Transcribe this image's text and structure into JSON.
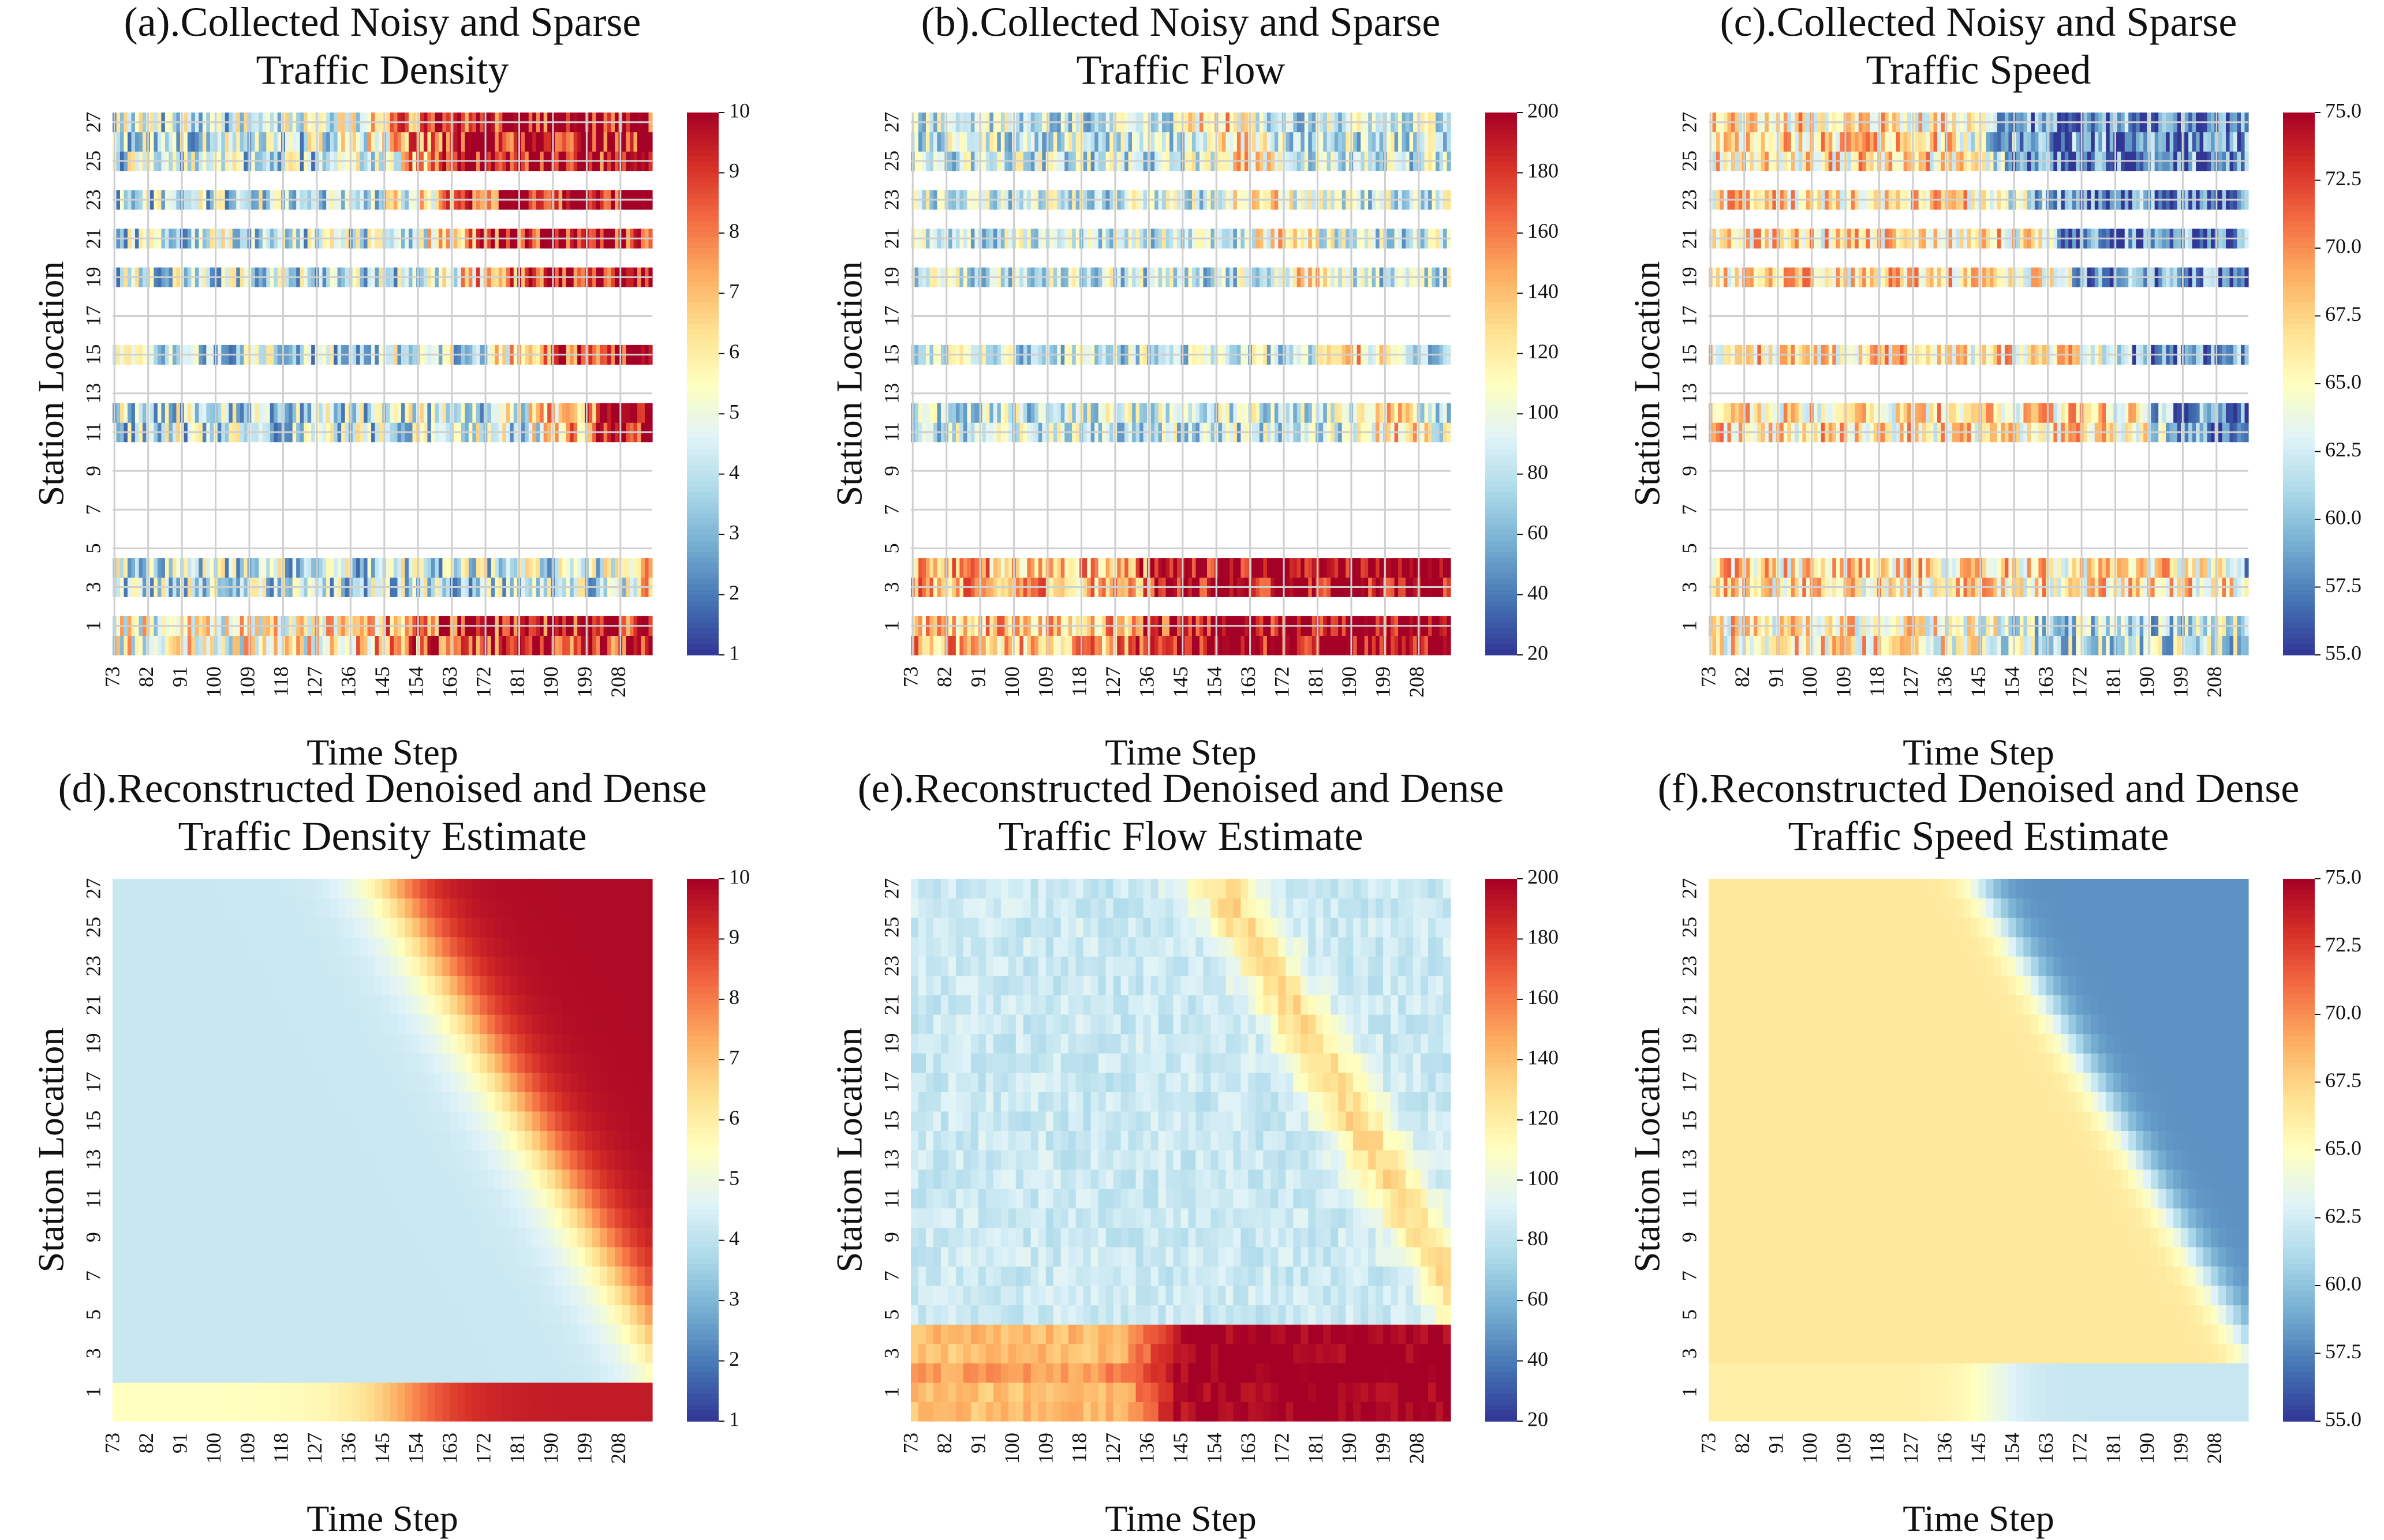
{
  "chart_data": [
    {
      "type": "heatmap",
      "title": [
        "(a).Collected Noisy and Sparse",
        "Traffic Density"
      ],
      "xlabel": "Time Step",
      "ylabel": "Station Location",
      "x_ticks": [
        "73",
        "82",
        "91",
        "100",
        "109",
        "118",
        "127",
        "136",
        "145",
        "154",
        "163",
        "172",
        "181",
        "190",
        "199",
        "208"
      ],
      "y_ticks": [
        "1",
        "3",
        "5",
        "7",
        "9",
        "11",
        "13",
        "15",
        "17",
        "19",
        "21",
        "23",
        "25",
        "27"
      ],
      "colorbar_ticks": [
        "1",
        "2",
        "3",
        "4",
        "5",
        "6",
        "7",
        "8",
        "9",
        "10"
      ],
      "vmin": 1,
      "vmax": 10,
      "x_range": [
        73,
        216
      ],
      "y_range": [
        0,
        27
      ],
      "observed_rows": [
        0,
        1,
        3,
        4,
        11,
        12,
        15,
        19,
        21,
        23,
        25,
        26,
        27
      ],
      "colormap": "RdYlBu_r",
      "field": "density",
      "sparse": true,
      "grid": true
    },
    {
      "type": "heatmap",
      "title": [
        "(b).Collected Noisy and Sparse",
        "Traffic Flow"
      ],
      "xlabel": "Time Step",
      "ylabel": "Station Location",
      "x_ticks": [
        "73",
        "82",
        "91",
        "100",
        "109",
        "118",
        "127",
        "136",
        "145",
        "154",
        "163",
        "172",
        "181",
        "190",
        "199",
        "208"
      ],
      "y_ticks": [
        "1",
        "3",
        "5",
        "7",
        "9",
        "11",
        "13",
        "15",
        "17",
        "19",
        "21",
        "23",
        "25",
        "27"
      ],
      "colorbar_ticks": [
        "20",
        "40",
        "60",
        "80",
        "100",
        "120",
        "140",
        "160",
        "180",
        "200"
      ],
      "vmin": 20,
      "vmax": 200,
      "x_range": [
        73,
        216
      ],
      "y_range": [
        0,
        27
      ],
      "observed_rows": [
        0,
        1,
        3,
        4,
        11,
        12,
        15,
        19,
        21,
        23,
        25,
        26,
        27
      ],
      "colormap": "RdYlBu_r",
      "field": "flow",
      "sparse": true,
      "grid": true
    },
    {
      "type": "heatmap",
      "title": [
        "(c).Collected Noisy and Sparse",
        "Traffic Speed"
      ],
      "xlabel": "Time Step",
      "ylabel": "Station Location",
      "x_ticks": [
        "73",
        "82",
        "91",
        "100",
        "109",
        "118",
        "127",
        "136",
        "145",
        "154",
        "163",
        "172",
        "181",
        "190",
        "199",
        "208"
      ],
      "y_ticks": [
        "1",
        "3",
        "5",
        "7",
        "9",
        "11",
        "13",
        "15",
        "17",
        "19",
        "21",
        "23",
        "25",
        "27"
      ],
      "colorbar_ticks": [
        "55.0",
        "57.5",
        "60.0",
        "62.5",
        "65.0",
        "67.5",
        "70.0",
        "72.5",
        "75.0"
      ],
      "vmin": 55,
      "vmax": 75,
      "x_range": [
        73,
        216
      ],
      "y_range": [
        0,
        27
      ],
      "observed_rows": [
        0,
        1,
        3,
        4,
        11,
        12,
        15,
        19,
        21,
        23,
        25,
        26,
        27
      ],
      "colormap": "RdYlBu_r",
      "field": "speed",
      "sparse": true,
      "grid": true
    },
    {
      "type": "heatmap",
      "title": [
        "(d).Reconstructed Denoised and Dense",
        "Traffic Density Estimate"
      ],
      "xlabel": "Time Step",
      "ylabel": "Station Location",
      "x_ticks": [
        "73",
        "82",
        "91",
        "100",
        "109",
        "118",
        "127",
        "136",
        "145",
        "154",
        "163",
        "172",
        "181",
        "190",
        "199",
        "208"
      ],
      "y_ticks": [
        "1",
        "3",
        "5",
        "7",
        "9",
        "11",
        "13",
        "15",
        "17",
        "19",
        "21",
        "23",
        "25",
        "27"
      ],
      "colorbar_ticks": [
        "1",
        "2",
        "3",
        "4",
        "5",
        "6",
        "7",
        "8",
        "9",
        "10"
      ],
      "vmin": 1,
      "vmax": 10,
      "x_range": [
        73,
        216
      ],
      "y_range": [
        0,
        27
      ],
      "colormap": "RdYlBu_r",
      "field": "density",
      "sparse": false,
      "grid": false
    },
    {
      "type": "heatmap",
      "title": [
        "(e).Reconstructed Denoised and Dense",
        "Traffic Flow Estimate"
      ],
      "xlabel": "Time Step",
      "ylabel": "Station Location",
      "x_ticks": [
        "73",
        "82",
        "91",
        "100",
        "109",
        "118",
        "127",
        "136",
        "145",
        "154",
        "163",
        "172",
        "181",
        "190",
        "199",
        "208"
      ],
      "y_ticks": [
        "1",
        "3",
        "5",
        "7",
        "9",
        "11",
        "13",
        "15",
        "17",
        "19",
        "21",
        "23",
        "25",
        "27"
      ],
      "colorbar_ticks": [
        "20",
        "40",
        "60",
        "80",
        "100",
        "120",
        "140",
        "160",
        "180",
        "200"
      ],
      "vmin": 20,
      "vmax": 200,
      "x_range": [
        73,
        216
      ],
      "y_range": [
        0,
        27
      ],
      "colormap": "RdYlBu_r",
      "field": "flow",
      "sparse": false,
      "grid": false
    },
    {
      "type": "heatmap",
      "title": [
        "(f).Reconstructed Denoised and Dense",
        "Traffic Speed Estimate"
      ],
      "xlabel": "Time Step",
      "ylabel": "Station Location",
      "x_ticks": [
        "73",
        "82",
        "91",
        "100",
        "109",
        "118",
        "127",
        "136",
        "145",
        "154",
        "163",
        "172",
        "181",
        "190",
        "199",
        "208"
      ],
      "y_ticks": [
        "1",
        "3",
        "5",
        "7",
        "9",
        "11",
        "13",
        "15",
        "17",
        "19",
        "21",
        "23",
        "25",
        "27"
      ],
      "colorbar_ticks": [
        "55.0",
        "57.5",
        "60.0",
        "62.5",
        "65.0",
        "67.5",
        "70.0",
        "72.5",
        "75.0"
      ],
      "vmin": 55,
      "vmax": 75,
      "x_range": [
        73,
        216
      ],
      "y_range": [
        0,
        27
      ],
      "colormap": "RdYlBu_r",
      "field": "speed",
      "sparse": false,
      "grid": false
    }
  ]
}
